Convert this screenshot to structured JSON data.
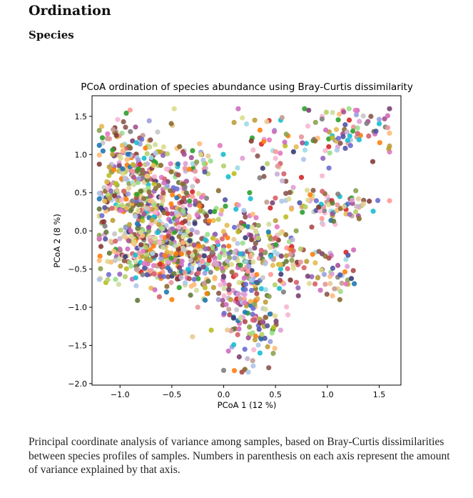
{
  "page": {
    "heading": "Ordination",
    "subheading": "Species",
    "caption": "Principal coordinate analysis of variance among samples, based on Bray-Curtis dissimilarities between species profiles of samples. Numbers in parenthesis on each axis represent the amount of variance explained by that axis."
  },
  "chart_data": {
    "type": "scatter",
    "title": "PCoA ordination of species abundance using Bray-Curtis dissimilarity",
    "xlabel": "PCoA 1 (12 %)",
    "ylabel": "PCoA 2 (8 %)",
    "xlim": [
      -1.27,
      1.71
    ],
    "ylim": [
      -2.02,
      1.77
    ],
    "xticks": [
      -1.0,
      -0.5,
      0.0,
      0.5,
      1.0,
      1.5
    ],
    "xtick_labels": [
      "−1.0",
      "−0.5",
      "0.0",
      "0.5",
      "1.0",
      "1.5"
    ],
    "yticks": [
      -2.0,
      -1.5,
      -1.0,
      -0.5,
      0.0,
      0.5,
      1.0,
      1.5
    ],
    "ytick_labels": [
      "−2.0",
      "−1.5",
      "−1.0",
      "−0.5",
      "0.0",
      "0.5",
      "1.0",
      "1.5"
    ],
    "grid": false,
    "legend": "none",
    "palette": [
      "#1f77b4",
      "#aec7e8",
      "#ff7f0e",
      "#ffbb78",
      "#2ca02c",
      "#98df8a",
      "#d62728",
      "#ff9896",
      "#9467bd",
      "#c5b0d5",
      "#8c564b",
      "#c49c94",
      "#e377c2",
      "#f7b6d2",
      "#7f7f7f",
      "#c7c7c7",
      "#bcbd22",
      "#dbdb8d",
      "#17becf",
      "#9edae5",
      "#393b79",
      "#637939",
      "#8c6d31",
      "#843c39",
      "#7b4173",
      "#5254a3",
      "#8ca252",
      "#bd9e39",
      "#ad494a",
      "#a55194",
      "#6b6ecf",
      "#b5cf6b",
      "#e7ba52",
      "#d6616b",
      "#ce6dbd",
      "#9c9ede",
      "#cedb9c",
      "#e7cb94",
      "#e7969c",
      "#de9ed6"
    ],
    "points_total": 1500,
    "points": [
      {
        "x": -1.17,
        "y": 1.22
      },
      {
        "x": -1.12,
        "y": 1.27
      },
      {
        "x": -1.05,
        "y": 1.35
      },
      {
        "x": -0.98,
        "y": 1.28
      },
      {
        "x": -0.9,
        "y": 1.3
      },
      {
        "x": -0.85,
        "y": 1.36
      },
      {
        "x": -0.78,
        "y": 1.25
      },
      {
        "x": -0.72,
        "y": 1.18
      },
      {
        "x": -0.66,
        "y": 1.13
      },
      {
        "x": -0.58,
        "y": 1.1
      },
      {
        "x": -0.45,
        "y": 1.08
      },
      {
        "x": -0.38,
        "y": 1.05
      },
      {
        "x": -0.3,
        "y": 1.05
      },
      {
        "x": -0.22,
        "y": 1.03
      },
      {
        "x": -0.15,
        "y": 0.98
      },
      {
        "x": 0.14,
        "y": 1.6
      },
      {
        "x": 0.18,
        "y": 1.48
      },
      {
        "x": 0.22,
        "y": 1.4
      },
      {
        "x": 0.1,
        "y": 1.42
      },
      {
        "x": 0.3,
        "y": 1.45
      },
      {
        "x": 0.35,
        "y": 1.32
      },
      {
        "x": 0.55,
        "y": 1.45
      },
      {
        "x": 0.78,
        "y": 1.6
      },
      {
        "x": 0.82,
        "y": 1.58
      },
      {
        "x": 0.95,
        "y": 1.5
      },
      {
        "x": 1.05,
        "y": 1.55
      },
      {
        "x": 1.15,
        "y": 1.58
      },
      {
        "x": 1.28,
        "y": 1.52
      },
      {
        "x": 1.42,
        "y": 1.5
      },
      {
        "x": 1.5,
        "y": 1.46
      },
      {
        "x": 1.56,
        "y": 1.36
      },
      {
        "x": 1.6,
        "y": 1.28
      },
      {
        "x": 1.45,
        "y": 1.3
      },
      {
        "x": 1.32,
        "y": 1.25
      },
      {
        "x": 1.2,
        "y": 1.15
      },
      {
        "x": 1.1,
        "y": 1.1
      },
      {
        "x": 0.98,
        "y": 1.05
      },
      {
        "x": 0.88,
        "y": 1.2
      },
      {
        "x": 0.7,
        "y": 1.1
      },
      {
        "x": 0.5,
        "y": 0.95
      },
      {
        "x": 0.42,
        "y": 0.88
      },
      {
        "x": 0.6,
        "y": 0.65
      },
      {
        "x": 0.75,
        "y": 0.7
      },
      {
        "x": 0.95,
        "y": 0.72
      },
      {
        "x": 1.0,
        "y": 0.45
      },
      {
        "x": 1.12,
        "y": 0.45
      },
      {
        "x": 1.22,
        "y": 0.42
      },
      {
        "x": 1.3,
        "y": 0.42
      },
      {
        "x": 1.35,
        "y": 0.4
      },
      {
        "x": 1.28,
        "y": 0.32
      },
      {
        "x": 1.18,
        "y": 0.28
      },
      {
        "x": 1.05,
        "y": 0.2
      },
      {
        "x": 0.95,
        "y": 0.1
      },
      {
        "x": 0.85,
        "y": 0.05
      },
      {
        "x": 0.7,
        "y": 0.0
      },
      {
        "x": 0.6,
        "y": -0.05
      },
      {
        "x": 0.3,
        "y": 0.08
      },
      {
        "x": 0.15,
        "y": 0.0
      },
      {
        "x": 0.05,
        "y": -0.2
      },
      {
        "x": -0.1,
        "y": -0.3
      },
      {
        "x": -0.25,
        "y": -0.4
      },
      {
        "x": -0.4,
        "y": -0.55
      },
      {
        "x": -0.6,
        "y": -0.6
      },
      {
        "x": -0.75,
        "y": -0.4
      },
      {
        "x": -0.88,
        "y": -0.3
      },
      {
        "x": -1.0,
        "y": -0.25
      },
      {
        "x": -1.08,
        "y": -0.15
      },
      {
        "x": -1.15,
        "y": -0.05
      },
      {
        "x": -1.18,
        "y": 0.1
      },
      {
        "x": -1.12,
        "y": 0.28
      },
      {
        "x": -1.05,
        "y": 0.45
      },
      {
        "x": -1.1,
        "y": 0.6
      },
      {
        "x": -0.95,
        "y": 0.78
      },
      {
        "x": -0.82,
        "y": 0.9
      },
      {
        "x": -0.6,
        "y": 0.7
      },
      {
        "x": -0.45,
        "y": 0.55
      },
      {
        "x": -0.3,
        "y": 0.45
      },
      {
        "x": -0.2,
        "y": 0.25
      },
      {
        "x": -0.05,
        "y": 0.15
      },
      {
        "x": 0.05,
        "y": -0.75
      },
      {
        "x": -0.05,
        "y": -0.9
      },
      {
        "x": 0.0,
        "y": -1.1
      },
      {
        "x": -0.12,
        "y": -1.3
      },
      {
        "x": 0.08,
        "y": -1.52
      },
      {
        "x": 0.15,
        "y": -1.65
      },
      {
        "x": 0.2,
        "y": -1.82
      },
      {
        "x": 0.28,
        "y": -1.7
      },
      {
        "x": 0.35,
        "y": -1.6
      },
      {
        "x": 0.45,
        "y": -1.45
      },
      {
        "x": 0.55,
        "y": -1.3
      },
      {
        "x": 0.62,
        "y": -1.1
      },
      {
        "x": 0.72,
        "y": -0.85
      },
      {
        "x": 0.85,
        "y": -0.6
      },
      {
        "x": 0.98,
        "y": -0.7
      },
      {
        "x": 1.05,
        "y": -0.85
      },
      {
        "x": 1.12,
        "y": -0.9
      },
      {
        "x": 1.2,
        "y": -0.7
      },
      {
        "x": 1.25,
        "y": -0.52
      },
      {
        "x": 1.18,
        "y": -0.28
      },
      {
        "x": 0.95,
        "y": -0.3
      },
      {
        "x": 0.8,
        "y": -0.4
      },
      {
        "x": 0.55,
        "y": -0.5
      },
      {
        "x": 0.35,
        "y": -0.65
      },
      {
        "x": 0.25,
        "y": -0.95
      },
      {
        "x": 0.38,
        "y": -1.2
      },
      {
        "x": -0.25,
        "y": -1.0
      },
      {
        "x": -0.5,
        "y": -0.9
      },
      {
        "x": -0.7,
        "y": -0.75
      },
      {
        "x": -0.95,
        "y": -0.6
      },
      {
        "x": -1.12,
        "y": -0.4
      },
      {
        "x": -0.2,
        "y": -0.7
      },
      {
        "x": 0.45,
        "y": 0.3
      },
      {
        "x": 0.6,
        "y": 0.4
      },
      {
        "x": 0.25,
        "y": 0.5
      },
      {
        "x": 0.1,
        "y": 0.75
      },
      {
        "x": 0.0,
        "y": 0.85
      },
      {
        "x": -0.3,
        "y": 0.8
      }
    ]
  }
}
